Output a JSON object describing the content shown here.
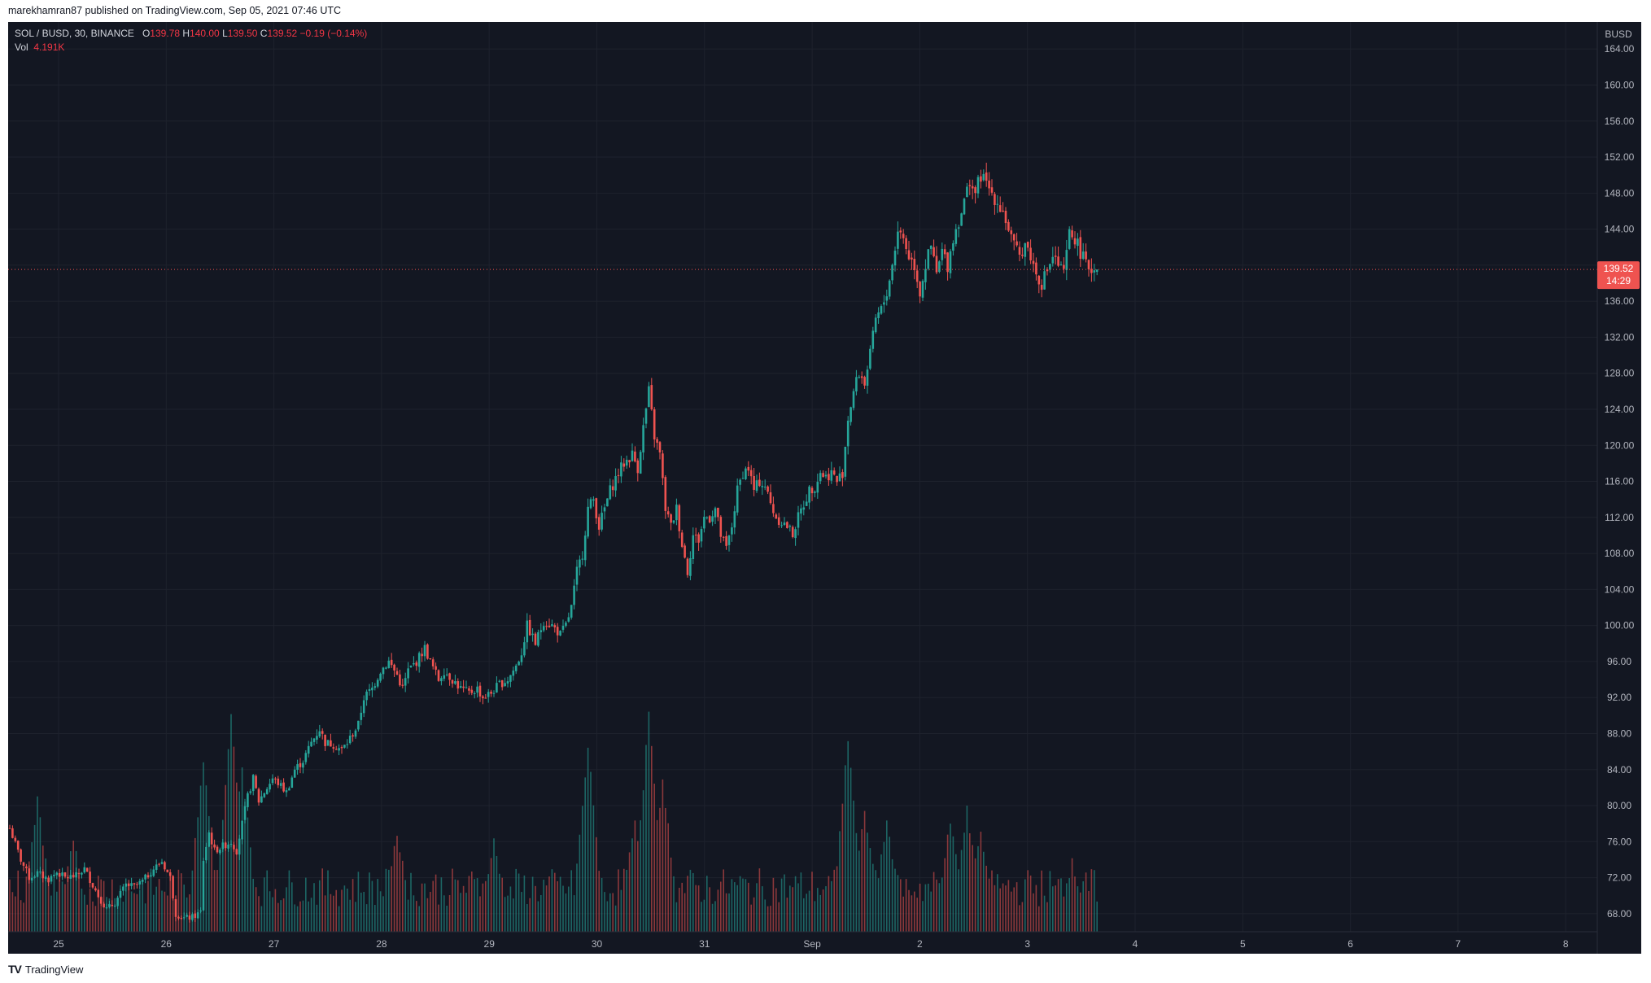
{
  "caption": "marekhamran87 published on TradingView.com, Sep 05, 2021 07:46 UTC",
  "brand": {
    "logo_text": "TV",
    "name": "TradingView"
  },
  "legend": {
    "symbol": "SOL / BUSD, 30, BINANCE",
    "o_label": "O",
    "o": "139.78",
    "h_label": "H",
    "h": "140.00",
    "l_label": "L",
    "l": "139.50",
    "c_label": "C",
    "c": "139.52",
    "change": "−0.19 (−0.14%)",
    "vol_label": "Vol",
    "vol": "4.191K"
  },
  "price_label": {
    "price": "139.52",
    "countdown": "14:29"
  },
  "colors": {
    "background": "#131722",
    "up": "#26a69a",
    "down": "#ef5350",
    "axis_text": "#b2b5be",
    "grid": "#1e222d"
  },
  "chart_data": {
    "type": "candlestick",
    "currency": "BUSD",
    "interval": "30",
    "y_ticks": [
      "164.00",
      "160.00",
      "156.00",
      "152.00",
      "148.00",
      "144.00",
      "140.00",
      "136.00",
      "132.00",
      "128.00",
      "124.00",
      "120.00",
      "116.00",
      "112.00",
      "108.00",
      "104.00",
      "100.00",
      "96.00",
      "92.00",
      "88.00",
      "84.00",
      "80.00",
      "76.00",
      "72.00",
      "68.00"
    ],
    "x_ticks": [
      "25",
      "26",
      "27",
      "28",
      "29",
      "30",
      "31",
      "Sep",
      "2",
      "3",
      "4",
      "5",
      "6",
      "7",
      "8"
    ],
    "ylim": [
      66,
      167
    ],
    "last_price": 139.52,
    "price_path": [
      [
        0,
        77.5
      ],
      [
        4,
        74
      ],
      [
        7,
        72
      ],
      [
        10,
        72.5
      ],
      [
        14,
        71.8
      ],
      [
        17,
        72.6
      ],
      [
        20,
        72
      ],
      [
        24,
        72.2
      ],
      [
        27,
        73
      ],
      [
        32,
        70
      ],
      [
        35,
        68.5
      ],
      [
        38,
        69.2
      ],
      [
        42,
        71.2
      ],
      [
        45,
        71
      ],
      [
        48,
        71.6
      ],
      [
        52,
        73
      ],
      [
        55,
        73.8
      ],
      [
        58,
        72
      ],
      [
        60,
        68
      ],
      [
        63,
        67.5
      ],
      [
        66,
        67.6
      ],
      [
        69,
        68.2
      ],
      [
        70,
        74
      ],
      [
        72,
        77
      ],
      [
        74,
        75
      ],
      [
        77,
        75.5
      ],
      [
        80,
        76
      ],
      [
        82,
        75
      ],
      [
        84,
        78
      ],
      [
        86,
        81
      ],
      [
        88,
        83
      ],
      [
        90,
        80.5
      ],
      [
        93,
        82
      ],
      [
        95,
        83
      ],
      [
        97,
        82.5
      ],
      [
        100,
        81.5
      ],
      [
        103,
        84
      ],
      [
        106,
        85
      ],
      [
        109,
        87
      ],
      [
        112,
        88.5
      ],
      [
        114,
        87
      ],
      [
        117,
        86.8
      ],
      [
        120,
        86.2
      ],
      [
        122,
        87
      ],
      [
        124,
        88
      ],
      [
        126,
        89
      ],
      [
        128,
        92
      ],
      [
        131,
        93
      ],
      [
        134,
        95
      ],
      [
        137,
        96
      ],
      [
        140,
        94.5
      ],
      [
        142,
        93
      ],
      [
        144,
        95
      ],
      [
        147,
        96
      ],
      [
        150,
        97.5
      ],
      [
        152,
        96
      ],
      [
        155,
        94
      ],
      [
        157,
        95
      ],
      [
        160,
        94
      ],
      [
        163,
        93
      ],
      [
        166,
        92.5
      ],
      [
        169,
        93
      ],
      [
        171,
        92
      ],
      [
        174,
        92.5
      ],
      [
        177,
        93.5
      ],
      [
        180,
        94
      ],
      [
        183,
        95.5
      ],
      [
        185,
        97
      ],
      [
        187,
        100
      ],
      [
        190,
        98
      ],
      [
        193,
        100.5
      ],
      [
        196,
        100
      ],
      [
        199,
        99
      ],
      [
        201,
        100
      ],
      [
        203,
        102
      ],
      [
        205,
        106
      ],
      [
        207,
        108
      ],
      [
        209,
        113
      ],
      [
        211,
        114
      ],
      [
        213,
        111
      ],
      [
        215,
        113
      ],
      [
        217,
        115
      ],
      [
        220,
        117
      ],
      [
        222,
        118
      ],
      [
        225,
        119
      ],
      [
        227,
        117.5
      ],
      [
        229,
        122
      ],
      [
        231,
        126
      ],
      [
        233,
        121
      ],
      [
        235,
        119
      ],
      [
        237,
        113
      ],
      [
        239,
        111
      ],
      [
        241,
        113
      ],
      [
        243,
        109
      ],
      [
        245,
        106
      ],
      [
        247,
        110
      ],
      [
        249,
        109.5
      ],
      [
        251,
        112
      ],
      [
        253,
        112
      ],
      [
        255,
        113
      ],
      [
        257,
        110
      ],
      [
        259,
        108.5
      ],
      [
        261,
        111
      ],
      [
        263,
        115
      ],
      [
        265,
        117
      ],
      [
        267,
        117.5
      ],
      [
        269,
        115
      ],
      [
        271,
        116
      ],
      [
        273,
        115.5
      ],
      [
        275,
        113.5
      ],
      [
        277,
        112
      ],
      [
        279,
        111.5
      ],
      [
        281,
        111
      ],
      [
        283,
        110.2
      ],
      [
        285,
        112
      ],
      [
        287,
        113.5
      ],
      [
        289,
        115
      ],
      [
        291,
        115.5
      ],
      [
        293,
        117
      ],
      [
        295,
        116.5
      ],
      [
        297,
        117
      ],
      [
        299,
        116
      ],
      [
        301,
        117
      ],
      [
        303,
        123
      ],
      [
        305,
        126
      ],
      [
        307,
        128
      ],
      [
        309,
        127
      ],
      [
        311,
        130
      ],
      [
        313,
        134
      ],
      [
        315,
        135
      ],
      [
        317,
        137
      ],
      [
        319,
        140
      ],
      [
        321,
        144
      ],
      [
        323,
        143
      ],
      [
        325,
        141
      ],
      [
        327,
        140
      ],
      [
        329,
        137
      ],
      [
        331,
        140
      ],
      [
        333,
        142
      ],
      [
        335,
        139
      ],
      [
        337,
        141.5
      ],
      [
        339,
        140
      ],
      [
        341,
        143
      ],
      [
        343,
        145
      ],
      [
        345,
        147
      ],
      [
        347,
        149.5
      ],
      [
        349,
        148
      ],
      [
        351,
        150
      ],
      [
        353,
        149
      ],
      [
        355,
        148
      ],
      [
        357,
        147
      ],
      [
        359,
        146
      ],
      [
        361,
        144
      ],
      [
        363,
        142
      ],
      [
        365,
        141
      ],
      [
        367,
        142.5
      ],
      [
        369,
        141
      ],
      [
        371,
        139
      ],
      [
        373,
        138
      ],
      [
        375,
        139.5
      ],
      [
        377,
        141
      ],
      [
        379,
        140
      ],
      [
        381,
        139
      ],
      [
        383,
        143.5
      ],
      [
        385,
        143
      ],
      [
        387,
        141.5
      ],
      [
        389,
        140
      ],
      [
        391,
        139.6
      ],
      [
        393,
        139.52
      ]
    ],
    "volume_bursts": [
      [
        10,
        0.6
      ],
      [
        23,
        0.4
      ],
      [
        70,
        0.8
      ],
      [
        80,
        1.0
      ],
      [
        84,
        0.75
      ],
      [
        140,
        0.45
      ],
      [
        175,
        0.4
      ],
      [
        209,
        0.85
      ],
      [
        226,
        0.5
      ],
      [
        231,
        1.0
      ],
      [
        236,
        0.7
      ],
      [
        303,
        0.9
      ],
      [
        309,
        0.55
      ],
      [
        317,
        0.5
      ],
      [
        340,
        0.5
      ],
      [
        346,
        0.55
      ],
      [
        351,
        0.45
      ],
      [
        384,
        0.3
      ]
    ]
  }
}
